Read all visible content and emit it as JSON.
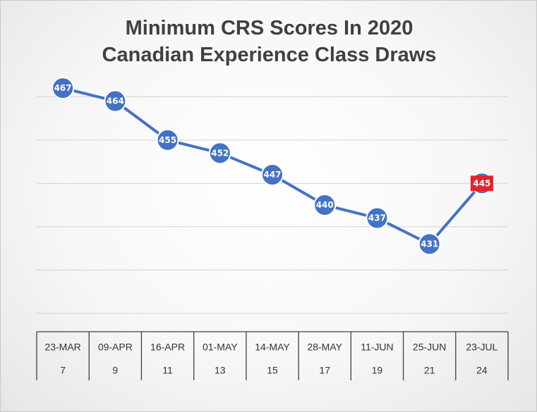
{
  "chart_data": {
    "type": "line",
    "title_lines": [
      "Minimum CRS Scores In 2020",
      "Canadian Experience Class Draws"
    ],
    "categories": [
      "23-MAR",
      "09-APR",
      "16-APR",
      "01-MAY",
      "14-MAY",
      "28-MAY",
      "11-JUN",
      "25-JUN",
      "23-JUL"
    ],
    "category_sub_labels": [
      "7",
      "9",
      "11",
      "13",
      "15",
      "17",
      "19",
      "21",
      "24"
    ],
    "series": [
      {
        "values": [
          467,
          464,
          455,
          452,
          447,
          440,
          437,
          431,
          445
        ]
      }
    ],
    "data_labels": [
      "467",
      "464",
      "455",
      "452",
      "447",
      "440",
      "437",
      "431",
      "445"
    ],
    "highlight_index": 8,
    "ylim": [
      405,
      475
    ],
    "y_gridlines": [
      415,
      425,
      435,
      445,
      455,
      465
    ],
    "grid": true,
    "y_axis_labels_visible": false,
    "colors": {
      "line": "#4472C4",
      "marker_fill": "#4472C4",
      "marker_stroke": "#ffffff",
      "highlight_fill": "#E8202A",
      "grid": "#d4d4d4",
      "axis": "#404040",
      "title": "#404040"
    }
  }
}
